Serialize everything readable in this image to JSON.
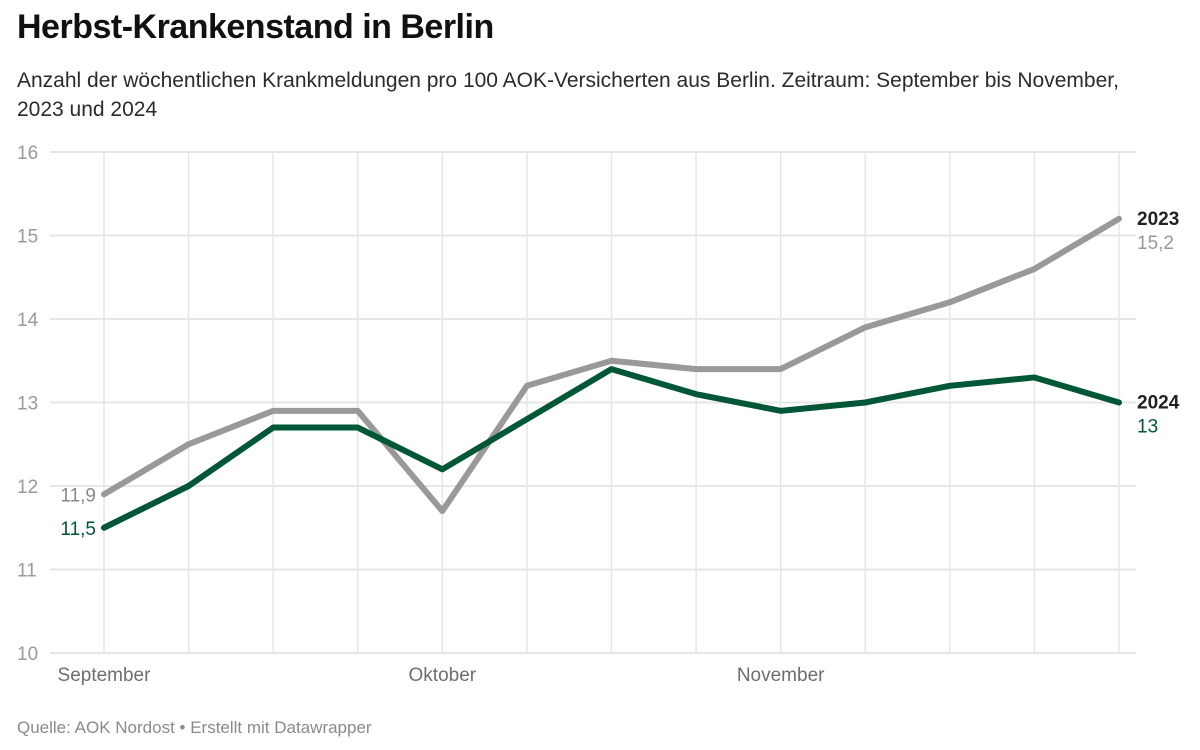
{
  "header": {
    "title": "Herbst-Krankenstand in Berlin",
    "subtitle": "Anzahl der wöchentlichen Krankmeldungen pro 100 AOK-Versicherten aus Berlin. Zeitraum: September bis November, 2023 und 2024"
  },
  "footer": {
    "text": "Quelle: AOK Nordost • Erstellt mit Datawrapper"
  },
  "chart_data": {
    "type": "line",
    "title": "Herbst-Krankenstand in Berlin",
    "xlabel": "",
    "ylabel": "",
    "ylim": [
      10,
      16
    ],
    "yticks": [
      "10",
      "11",
      "12",
      "13",
      "14",
      "15",
      "16"
    ],
    "x": [
      1,
      2,
      3,
      4,
      5,
      6,
      7,
      8,
      9,
      10,
      11,
      12,
      13
    ],
    "xticks": [
      {
        "x": 1,
        "label": "September"
      },
      {
        "x": 5,
        "label": "Oktober"
      },
      {
        "x": 9,
        "label": "November"
      }
    ],
    "grid": true,
    "series": [
      {
        "name": "2023",
        "color": "#999999",
        "values": [
          11.9,
          12.5,
          12.9,
          12.9,
          11.7,
          13.2,
          13.5,
          13.4,
          13.4,
          13.9,
          14.2,
          14.6,
          15.2
        ],
        "start_label": "11,9",
        "end_label": "15,2"
      },
      {
        "name": "2024",
        "color": "#005737",
        "values": [
          11.5,
          12.0,
          12.7,
          12.7,
          12.2,
          12.8,
          13.4,
          13.1,
          12.9,
          13.0,
          13.2,
          13.3,
          13.0
        ],
        "start_label": "11,5",
        "end_label": "13"
      }
    ]
  }
}
